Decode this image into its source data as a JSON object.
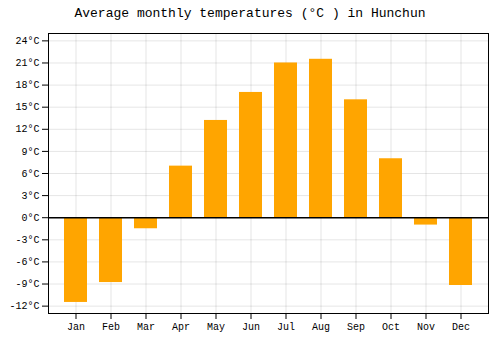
{
  "chart_data": {
    "type": "bar",
    "title": "Average monthly temperatures (°C ) in Hunchun",
    "categories": [
      "Jan",
      "Feb",
      "Mar",
      "Apr",
      "May",
      "Jun",
      "Jul",
      "Aug",
      "Sep",
      "Oct",
      "Nov",
      "Dec"
    ],
    "values": [
      -11.5,
      -8.8,
      -1.5,
      7.0,
      13.2,
      17.0,
      21.0,
      21.5,
      16.0,
      8.0,
      -1.0,
      -9.2
    ],
    "color": "#FFA500",
    "ylim": [
      -13,
      25
    ],
    "yticks": [
      {
        "value": -12,
        "label": "-12°C"
      },
      {
        "value": -9,
        "label": "-9°C"
      },
      {
        "value": -6,
        "label": "-6°C"
      },
      {
        "value": -3,
        "label": "-3°C"
      },
      {
        "value": 0,
        "label": "0°C"
      },
      {
        "value": 3,
        "label": "3°C"
      },
      {
        "value": 6,
        "label": "6°C"
      },
      {
        "value": 9,
        "label": "9°C"
      },
      {
        "value": 12,
        "label": "12°C"
      },
      {
        "value": 15,
        "label": "15°C"
      },
      {
        "value": 18,
        "label": "18°C"
      },
      {
        "value": 21,
        "label": "21°C"
      },
      {
        "value": 24,
        "label": "24°C"
      }
    ],
    "grid": true
  }
}
